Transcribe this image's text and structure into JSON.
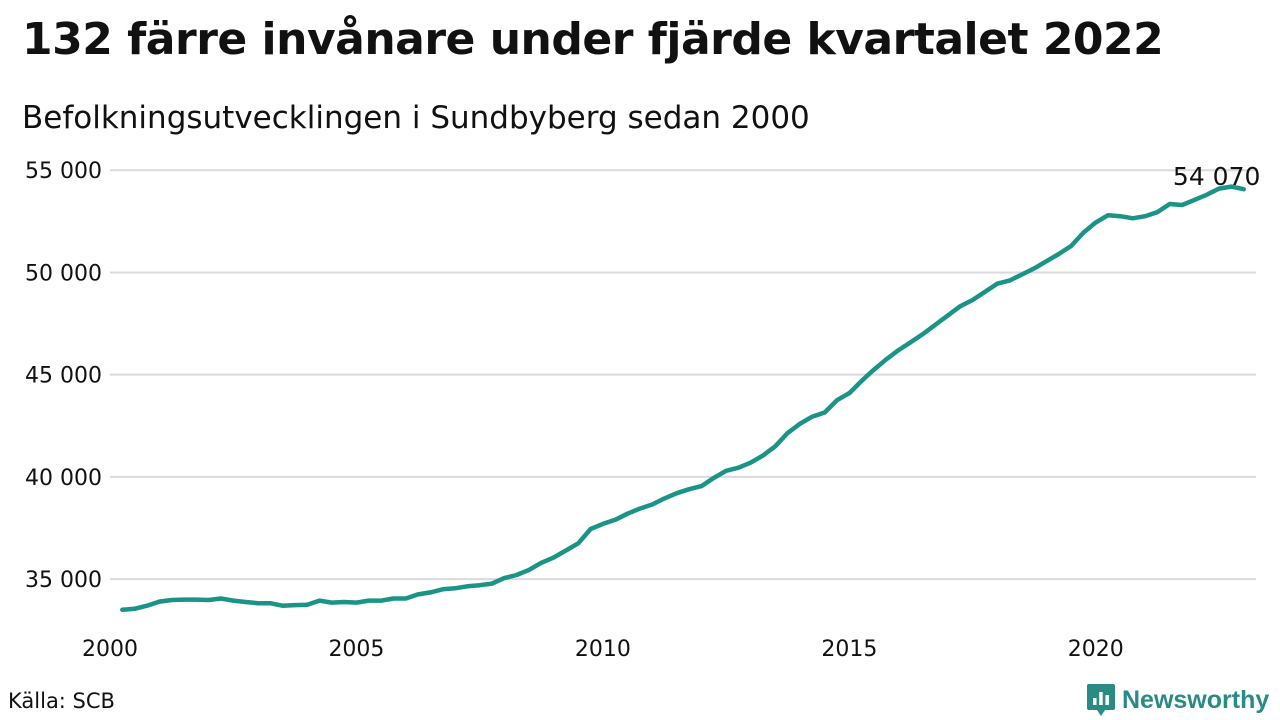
{
  "header": {
    "title": "132 färre invånare under fjärde kvartalet 2022",
    "subtitle": "Befolkningsutvecklingen i Sundbyberg sedan 2000"
  },
  "footer": {
    "source": "Källa: SCB",
    "brand": "Newsworthy",
    "brand_color": "#2a8a84"
  },
  "chart_data": {
    "type": "line",
    "x_tick_labels": [
      "2000",
      "2005",
      "2010",
      "2015",
      "2020"
    ],
    "y_tick_labels": [
      "35 000",
      "40 000",
      "45 000",
      "50 000",
      "55 000"
    ],
    "ylim": [
      33000,
      55500
    ],
    "xlim": [
      2000,
      2023.25
    ],
    "grid": true,
    "line_color": "#1a9486",
    "end_label": "54 070",
    "series": [
      {
        "x": [
          2000.25,
          2000.5,
          2000.75,
          2001.0,
          2001.25,
          2001.5,
          2001.75,
          2002.0,
          2002.25,
          2002.5,
          2002.75,
          2003.0,
          2003.25,
          2003.5,
          2003.75,
          2004.0,
          2004.25,
          2004.5,
          2004.75,
          2005.0,
          2005.25,
          2005.5,
          2005.75,
          2006.0,
          2006.25,
          2006.5,
          2006.75,
          2007.0,
          2007.25,
          2007.5,
          2007.75,
          2008.0,
          2008.25,
          2008.5,
          2008.75,
          2009.0,
          2009.25,
          2009.5,
          2009.75,
          2010.0,
          2010.25,
          2010.5,
          2010.75,
          2011.0,
          2011.25,
          2011.5,
          2011.75,
          2012.0,
          2012.25,
          2012.5,
          2012.75,
          2013.0,
          2013.25,
          2013.5,
          2013.75,
          2014.0,
          2014.25,
          2014.5,
          2014.75,
          2015.0,
          2015.25,
          2015.5,
          2015.75,
          2016.0,
          2016.25,
          2016.5,
          2016.75,
          2017.0,
          2017.25,
          2017.5,
          2017.75,
          2018.0,
          2018.25,
          2018.5,
          2018.75,
          2019.0,
          2019.25,
          2019.5,
          2019.75,
          2020.0,
          2020.25,
          2020.5,
          2020.75,
          2021.0,
          2021.25,
          2021.5,
          2021.75,
          2022.0,
          2022.25,
          2022.5,
          2022.75,
          2023.0
        ],
        "y": [
          33500,
          33550,
          33700,
          33900,
          33980,
          34000,
          34000,
          33980,
          34050,
          33950,
          33880,
          33820,
          33820,
          33700,
          33730,
          33750,
          33950,
          33850,
          33880,
          33850,
          33950,
          33950,
          34050,
          34050,
          34250,
          34350,
          34500,
          34550,
          34650,
          34700,
          34780,
          35050,
          35200,
          35450,
          35800,
          36050,
          36400,
          36750,
          37450,
          37700,
          37900,
          38200,
          38450,
          38650,
          38950,
          39200,
          39400,
          39550,
          39950,
          40300,
          40450,
          40700,
          41050,
          41500,
          42150,
          42600,
          42950,
          43150,
          43750,
          44100,
          44700,
          45250,
          45750,
          46200,
          46600,
          47000,
          47450,
          47900,
          48350,
          48650,
          49050,
          49450,
          49600,
          49900,
          50200,
          50550,
          50900,
          51300,
          51950,
          52450,
          52800,
          52750,
          52650,
          52750,
          52950,
          53350,
          53300,
          53550,
          53800,
          54100,
          54200,
          54070
        ]
      }
    ]
  }
}
